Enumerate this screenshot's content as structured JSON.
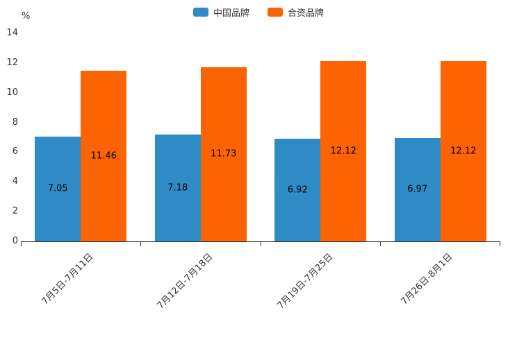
{
  "chart_data": {
    "type": "bar",
    "title": "",
    "categories": [
      "7月5日-7月11日",
      "7月12日-7月18日",
      "7月19日-7月25日",
      "7月26日-8月1日"
    ],
    "series": [
      {
        "name": "中国品牌",
        "color": "#2e8bc5",
        "values": [
          7.05,
          7.18,
          6.92,
          6.97
        ]
      },
      {
        "name": "合资品牌",
        "color": "#fc6302",
        "values": [
          11.46,
          11.73,
          12.12,
          12.12
        ]
      }
    ],
    "xlabel": "",
    "ylabel": "%",
    "ylim": [
      0,
      14
    ],
    "yticks": [
      0,
      2,
      4,
      6,
      8,
      10,
      12,
      14
    ],
    "legend_position": "top",
    "grid": false,
    "value_label_color": "#000000",
    "axis_color": "#333333"
  }
}
